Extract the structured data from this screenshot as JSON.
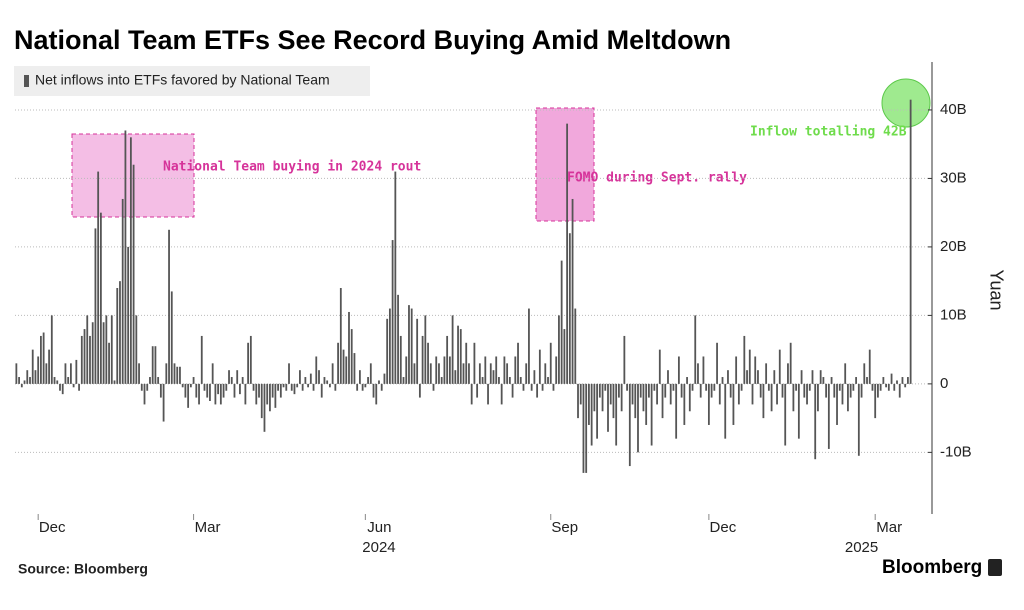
{
  "chart_data": {
    "type": "bar",
    "title": "National Team ETFs See Record Buying Amid Meltdown",
    "ylabel": "Yuan",
    "source": "Source: Bloomberg",
    "brand": "Bloomberg",
    "years": [
      "2024",
      "2025"
    ],
    "annotations": [
      "National Team buying in 2024 rout",
      "FOMO during Sept. rally",
      "Inflow totalling 42B"
    ],
    "ylim": [
      -19,
      47
    ],
    "yticks": [
      {
        "value": -10,
        "label": "-10B"
      },
      0,
      {
        "value": 10,
        "label": "10B"
      },
      {
        "value": 20,
        "label": "20B"
      },
      {
        "value": 30,
        "label": "30B"
      },
      {
        "value": 40,
        "label": "40B"
      }
    ],
    "grid": true,
    "legend": "top-left",
    "categories": [
      null,
      null,
      null,
      null,
      null,
      null,
      null,
      null,
      "Dec",
      null,
      null,
      null,
      null,
      null,
      null,
      null,
      null,
      null,
      null,
      null,
      null,
      null,
      null,
      null,
      null,
      null,
      null,
      null,
      null,
      null,
      null,
      null,
      null,
      null,
      null,
      null,
      null,
      null,
      null,
      null,
      null,
      null,
      null,
      null,
      null,
      null,
      null,
      null,
      null,
      null,
      null,
      null,
      null,
      null,
      null,
      null,
      null,
      null,
      null,
      null,
      null,
      null,
      null,
      null,
      null,
      "Mar",
      null,
      null,
      null,
      null,
      null,
      null,
      null,
      null,
      null,
      null,
      null,
      null,
      null,
      null,
      null,
      null,
      null,
      null,
      null,
      null,
      null,
      null,
      null,
      null,
      null,
      null,
      null,
      null,
      null,
      null,
      null,
      null,
      null,
      null,
      null,
      null,
      null,
      null,
      null,
      null,
      null,
      null,
      null,
      null,
      null,
      null,
      null,
      null,
      null,
      null,
      null,
      null,
      null,
      null,
      null,
      null,
      null,
      null,
      null,
      null,
      null,
      null,
      "Jun",
      null,
      null,
      null,
      null,
      null,
      null,
      null,
      null,
      null,
      null,
      null,
      null,
      null,
      null,
      null,
      null,
      null,
      null,
      null,
      null,
      null,
      null,
      null,
      null,
      null,
      null,
      null,
      null,
      null,
      null,
      null,
      null,
      null,
      null,
      null,
      null,
      null,
      null,
      null,
      null,
      null,
      null,
      null,
      null,
      null,
      null,
      null,
      null,
      null,
      null,
      null,
      null,
      null,
      null,
      null,
      null,
      null,
      null,
      null,
      null,
      null,
      null,
      null,
      null,
      null,
      null,
      null,
      "Sep",
      null,
      null,
      null,
      null,
      null,
      null,
      null,
      null,
      null,
      null,
      null,
      null,
      null,
      null,
      null,
      null,
      null,
      null,
      null,
      null,
      null,
      null,
      null,
      null,
      null,
      null,
      null,
      null,
      null,
      null,
      null,
      null,
      null,
      null,
      null,
      null,
      null,
      null,
      null,
      null,
      null,
      null,
      null,
      null,
      null,
      null,
      null,
      null,
      null,
      null,
      null,
      null,
      null,
      null,
      null,
      null,
      null,
      "Dec",
      null,
      null,
      null,
      null,
      null,
      null,
      null,
      null,
      null,
      null,
      null,
      null,
      null,
      null,
      null,
      null,
      null,
      null,
      null,
      null,
      null,
      null,
      null,
      null,
      null,
      null,
      null,
      null,
      null,
      null,
      null,
      null,
      null,
      null,
      null,
      null,
      null,
      null,
      null,
      null,
      null,
      null,
      null,
      null,
      null,
      null,
      null,
      null,
      null,
      null,
      null,
      null,
      null,
      null,
      null,
      null,
      null,
      null,
      null,
      null,
      "Mar",
      null,
      null,
      null,
      null,
      null,
      null,
      null,
      null,
      null,
      null,
      null,
      null,
      null
    ],
    "series": [
      {
        "name": "Net inflows into ETFs favored by National Team",
        "color": "#555555",
        "values": [
          3,
          1,
          -0.5,
          0.5,
          2,
          1,
          5,
          2,
          4,
          7,
          7.5,
          3,
          5,
          10,
          1,
          0.5,
          -1,
          -1.5,
          3,
          1,
          3,
          -0.5,
          3.5,
          -1,
          7,
          8,
          10,
          7,
          9,
          22.7,
          31,
          25,
          9,
          10,
          6,
          10,
          0.5,
          14,
          15,
          27,
          37,
          20,
          36,
          32,
          10,
          3,
          -1,
          -3,
          -1,
          1,
          5.5,
          5.5,
          1,
          -2,
          -5.5,
          3,
          22.5,
          13.5,
          3,
          2.5,
          2.5,
          -0.5,
          -2,
          -3.5,
          -0.5,
          1,
          -2,
          -3,
          7,
          -1,
          -2,
          -2.5,
          3,
          -3,
          -1.5,
          -3,
          -2,
          -1,
          2,
          1,
          -2,
          2,
          -1.5,
          1,
          -3,
          6,
          7,
          -1,
          -3,
          -2,
          -5,
          -7,
          -3,
          -4,
          -2,
          -3.5,
          -1,
          -2,
          -0.5,
          -1,
          3,
          -1,
          -1.5,
          -0.5,
          2,
          -1,
          1,
          -0.5,
          1.5,
          -1,
          4,
          2,
          -2,
          1,
          0.5,
          -0.5,
          3,
          -1,
          6,
          14,
          5,
          4,
          10.5,
          8,
          4.5,
          -1,
          2,
          -1,
          -0.5,
          1,
          3,
          -2,
          -3,
          0.5,
          -1,
          1.5,
          9.5,
          11,
          21,
          31,
          13,
          7,
          1,
          4,
          11.5,
          11,
          3,
          9.5,
          -2,
          7,
          10,
          6,
          3,
          -1,
          4,
          3,
          1,
          4,
          7,
          4,
          10,
          2,
          8.5,
          8,
          3,
          6,
          3,
          -3,
          6,
          -2,
          3,
          1,
          4,
          -3,
          3,
          2,
          4,
          1,
          -3,
          4,
          3,
          1,
          -2,
          4,
          6,
          1,
          -1,
          3,
          11,
          -1,
          2,
          -2,
          5,
          -1,
          3,
          1,
          6,
          -1,
          4,
          10,
          18,
          8,
          38,
          22,
          27,
          11,
          -5,
          -3,
          -13,
          -13,
          -6,
          -9,
          -4,
          -8,
          -2,
          -4,
          -1,
          -7,
          -3,
          -5,
          -9,
          -2,
          -4,
          7,
          -1,
          -12,
          -3,
          -5,
          -10,
          -2,
          -4,
          -6,
          -2,
          -9,
          -1,
          -3,
          5,
          -5,
          -2,
          2,
          -3,
          -1,
          -8,
          4,
          -2,
          -6,
          1,
          -4,
          -1,
          10,
          3,
          -2,
          4,
          -1,
          -6,
          -2,
          -1,
          6,
          -3,
          1,
          -8,
          2,
          -2,
          -6,
          4,
          -3,
          -1,
          7,
          2,
          5,
          -3,
          4,
          2,
          -2,
          -5,
          3,
          -1,
          -4,
          2,
          -3,
          5,
          -2,
          -9,
          3,
          6,
          -4,
          -1,
          -8,
          2,
          -2,
          -3,
          -1,
          2,
          -11,
          -4,
          2,
          1,
          -2,
          -9.5,
          1,
          -2,
          -6,
          -1,
          -3,
          3,
          -4,
          -2,
          -1,
          1,
          -10.5,
          -2,
          3,
          1,
          5,
          -1,
          -5,
          -2,
          -1,
          1,
          -0.5,
          -1,
          1.5,
          -1,
          0.5,
          -2,
          1,
          -0.5,
          1,
          41.5
        ]
      }
    ]
  }
}
